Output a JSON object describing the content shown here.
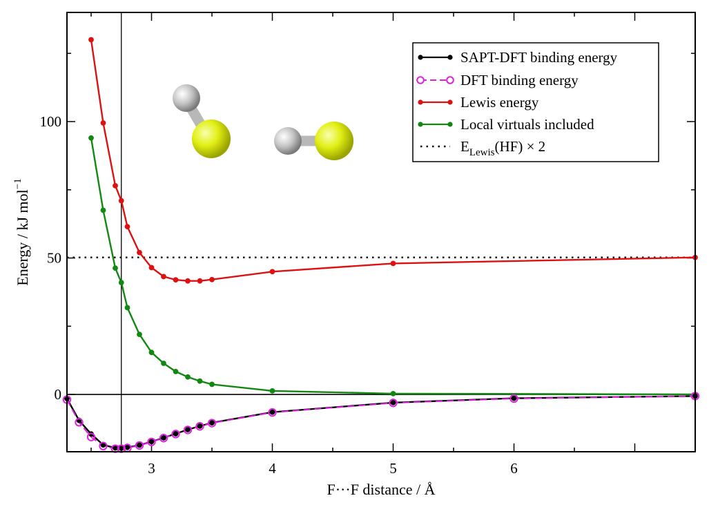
{
  "chart_data": {
    "type": "line",
    "xlabel": "F···F distance / Å",
    "ylabel": "Energy / kJ mol",
    "ylabel_sup": "−1",
    "xlim": [
      2.3,
      7.5
    ],
    "ylim": [
      -21,
      140
    ],
    "xticks": [
      3,
      4,
      5,
      6
    ],
    "yticks": [
      0,
      50,
      100
    ],
    "vertical_marker_x": 2.75,
    "legend_position": "top-right",
    "grid": false,
    "series": [
      {
        "name": "SAPT-DFT binding energy",
        "color": "#000000",
        "marker": "filled-circle",
        "dash": false,
        "x": [
          2.3,
          2.4,
          2.5,
          2.6,
          2.7,
          2.75,
          2.8,
          2.9,
          3.0,
          3.1,
          3.2,
          3.3,
          3.4,
          3.5,
          4.0,
          5.0,
          6.0,
          7.5
        ],
        "y": [
          -1.5,
          -9.5,
          -14.5,
          -18.5,
          -19.6,
          -19.7,
          -19.4,
          -18.6,
          -17.3,
          -15.9,
          -14.4,
          -12.9,
          -11.6,
          -10.4,
          -6.5,
          -3.0,
          -1.4,
          -0.6
        ]
      },
      {
        "name": "DFT binding energy",
        "color": "#dd22dd",
        "marker": "open-circle",
        "dash": true,
        "x": [
          2.3,
          2.4,
          2.5,
          2.6,
          2.7,
          2.75,
          2.8,
          2.9,
          3.0,
          3.1,
          3.2,
          3.3,
          3.4,
          3.5,
          4.0,
          5.0,
          6.0,
          7.5
        ],
        "y": [
          -1.9,
          -10.2,
          -15.6,
          -18.9,
          -19.9,
          -19.9,
          -19.6,
          -18.7,
          -17.4,
          -16.0,
          -14.5,
          -13.0,
          -11.7,
          -10.5,
          -6.6,
          -3.1,
          -1.5,
          -0.6
        ]
      },
      {
        "name": "Lewis energy",
        "color": "#dd1111",
        "marker": "filled-circle",
        "dash": false,
        "x": [
          2.5,
          2.6,
          2.7,
          2.75,
          2.8,
          2.9,
          3.0,
          3.1,
          3.2,
          3.3,
          3.4,
          3.5,
          4.0,
          5.0,
          7.5
        ],
        "y": [
          130,
          99.5,
          76.5,
          71,
          61.5,
          52,
          46.5,
          43.2,
          42,
          41.6,
          41.6,
          42.1,
          45,
          48,
          50.2
        ]
      },
      {
        "name": "Local virtuals included",
        "color": "#118811",
        "marker": "filled-circle",
        "dash": false,
        "x": [
          2.5,
          2.6,
          2.7,
          2.75,
          2.8,
          2.9,
          3.0,
          3.1,
          3.2,
          3.3,
          3.4,
          3.5,
          4.0,
          5.0,
          7.5
        ],
        "y": [
          94,
          67.5,
          46.3,
          41,
          31.8,
          22,
          15.4,
          11.4,
          8.4,
          6.4,
          4.9,
          3.7,
          1.3,
          0.3,
          0.0
        ]
      },
      {
        "name": "E",
        "name_sub": "Lewis",
        "name_suffix": "(HF) × 2",
        "color": "#000000",
        "marker": "none",
        "dotted": true,
        "x": [
          2.3,
          7.5
        ],
        "y": [
          50.2,
          50.2
        ]
      }
    ]
  },
  "colors": {
    "hydrogen": "#c8c8c8",
    "fluorine": "#e3ef1c"
  }
}
